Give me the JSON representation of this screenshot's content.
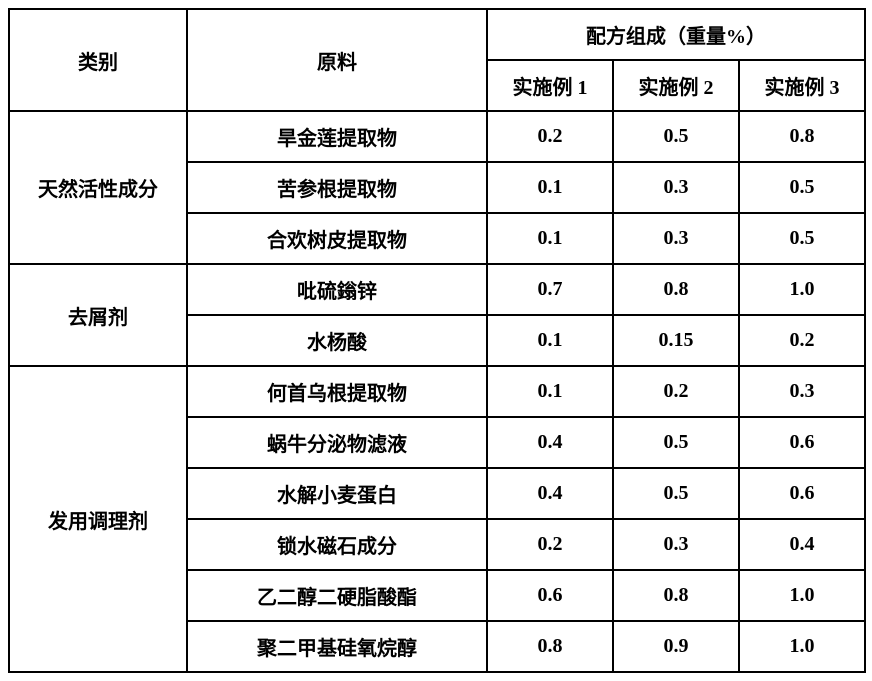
{
  "table": {
    "headers": {
      "category": "类别",
      "material": "原料",
      "composition_header": "配方组成（重量%）",
      "example1": "实施例 1",
      "example2": "实施例 2",
      "example3": "实施例 3"
    },
    "column_widths": {
      "category": 178,
      "material": 300,
      "example": 126
    },
    "border_color": "#000000",
    "background_color": "#ffffff",
    "text_color": "#000000",
    "font_size": 20,
    "font_weight": "bold",
    "groups": [
      {
        "category": "天然活性成分",
        "rows": [
          {
            "material": "旱金莲提取物",
            "ex1": "0.2",
            "ex2": "0.5",
            "ex3": "0.8"
          },
          {
            "material": "苦参根提取物",
            "ex1": "0.1",
            "ex2": "0.3",
            "ex3": "0.5"
          },
          {
            "material": "合欢树皮提取物",
            "ex1": "0.1",
            "ex2": "0.3",
            "ex3": "0.5"
          }
        ]
      },
      {
        "category": "去屑剂",
        "rows": [
          {
            "material": "吡硫鎓锌",
            "ex1": "0.7",
            "ex2": "0.8",
            "ex3": "1.0"
          },
          {
            "material": "水杨酸",
            "ex1": "0.1",
            "ex2": "0.15",
            "ex3": "0.2"
          }
        ]
      },
      {
        "category": "发用调理剂",
        "rows": [
          {
            "material": "何首乌根提取物",
            "ex1": "0.1",
            "ex2": "0.2",
            "ex3": "0.3"
          },
          {
            "material": "蜗牛分泌物滤液",
            "ex1": "0.4",
            "ex2": "0.5",
            "ex3": "0.6"
          },
          {
            "material": "水解小麦蛋白",
            "ex1": "0.4",
            "ex2": "0.5",
            "ex3": "0.6"
          },
          {
            "material": "锁水磁石成分",
            "ex1": "0.2",
            "ex2": "0.3",
            "ex3": "0.4"
          },
          {
            "material": "乙二醇二硬脂酸酯",
            "ex1": "0.6",
            "ex2": "0.8",
            "ex3": "1.0"
          },
          {
            "material": "聚二甲基硅氧烷醇",
            "ex1": "0.8",
            "ex2": "0.9",
            "ex3": "1.0"
          }
        ]
      }
    ]
  }
}
